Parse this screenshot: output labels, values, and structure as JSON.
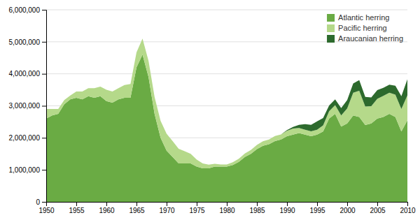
{
  "chart_data": {
    "type": "area",
    "stacked": true,
    "x": [
      1950,
      1951,
      1952,
      1953,
      1954,
      1955,
      1956,
      1957,
      1958,
      1959,
      1960,
      1961,
      1962,
      1963,
      1964,
      1965,
      1966,
      1967,
      1968,
      1969,
      1970,
      1971,
      1972,
      1973,
      1974,
      1975,
      1976,
      1977,
      1978,
      1979,
      1980,
      1981,
      1982,
      1983,
      1984,
      1985,
      1986,
      1987,
      1988,
      1989,
      1990,
      1991,
      1992,
      1993,
      1994,
      1995,
      1996,
      1997,
      1998,
      1999,
      2000,
      2001,
      2002,
      2003,
      2004,
      2005,
      2006,
      2007,
      2008,
      2009,
      2010
    ],
    "series": [
      {
        "name": "Atlantic herring",
        "color": "#6aab44",
        "values": [
          2600000,
          2700000,
          2750000,
          3050000,
          3200000,
          3250000,
          3200000,
          3300000,
          3250000,
          3300000,
          3150000,
          3100000,
          3200000,
          3250000,
          3250000,
          4200000,
          4600000,
          3900000,
          2750000,
          2000000,
          1600000,
          1400000,
          1200000,
          1200000,
          1200000,
          1100000,
          1050000,
          1050000,
          1100000,
          1100000,
          1100000,
          1150000,
          1250000,
          1400000,
          1500000,
          1650000,
          1750000,
          1800000,
          1900000,
          1950000,
          2050000,
          2100000,
          2150000,
          2100000,
          2050000,
          2100000,
          2200000,
          2600000,
          2750000,
          2350000,
          2450000,
          2700000,
          2650000,
          2400000,
          2450000,
          2600000,
          2650000,
          2750000,
          2650000,
          2200000,
          2550000
        ]
      },
      {
        "name": "Pacific herring",
        "color": "#b5d98a",
        "values": [
          300000,
          200000,
          150000,
          130000,
          120000,
          200000,
          250000,
          250000,
          300000,
          300000,
          350000,
          350000,
          350000,
          400000,
          430000,
          470000,
          500000,
          500000,
          530000,
          530000,
          530000,
          500000,
          460000,
          380000,
          300000,
          220000,
          150000,
          110000,
          90000,
          70000,
          70000,
          90000,
          100000,
          110000,
          120000,
          130000,
          145000,
          150000,
          155000,
          155000,
          170000,
          190000,
          155000,
          155000,
          155000,
          155000,
          190000,
          230000,
          270000,
          350000,
          470000,
          710000,
          820000,
          580000,
          540000,
          620000,
          660000,
          660000,
          700000,
          700000,
          780000
        ]
      },
      {
        "name": "Araucanian herring",
        "color": "#2d6a2d",
        "values": [
          0,
          0,
          0,
          0,
          0,
          0,
          0,
          0,
          0,
          0,
          0,
          0,
          0,
          0,
          0,
          0,
          0,
          0,
          0,
          0,
          0,
          0,
          0,
          0,
          0,
          0,
          0,
          0,
          0,
          0,
          0,
          0,
          0,
          0,
          0,
          0,
          0,
          0,
          0,
          0,
          20000,
          50000,
          100000,
          170000,
          200000,
          260000,
          230000,
          180000,
          180000,
          230000,
          260000,
          290000,
          330000,
          300000,
          270000,
          270000,
          250000,
          250000,
          280000,
          400000,
          500000
        ]
      }
    ],
    "xlim": [
      1950,
      2010
    ],
    "xticks": [
      1950,
      1955,
      1960,
      1965,
      1970,
      1975,
      1980,
      1985,
      1990,
      1995,
      2000,
      2005,
      2010
    ],
    "ylim": [
      0,
      6000000
    ],
    "yticks": [
      0,
      {
        "value": 1000000,
        "label": "1,000,000"
      },
      {
        "value": 2000000,
        "label": "2,000,000"
      },
      {
        "value": 3000000,
        "label": "3,000,000"
      },
      {
        "value": 4000000,
        "label": "4,000,000"
      },
      {
        "value": 5000000,
        "label": "5,000,000"
      },
      {
        "value": 6000000,
        "label": "6,000,000"
      }
    ],
    "grid": "y",
    "legend": "upper right"
  }
}
